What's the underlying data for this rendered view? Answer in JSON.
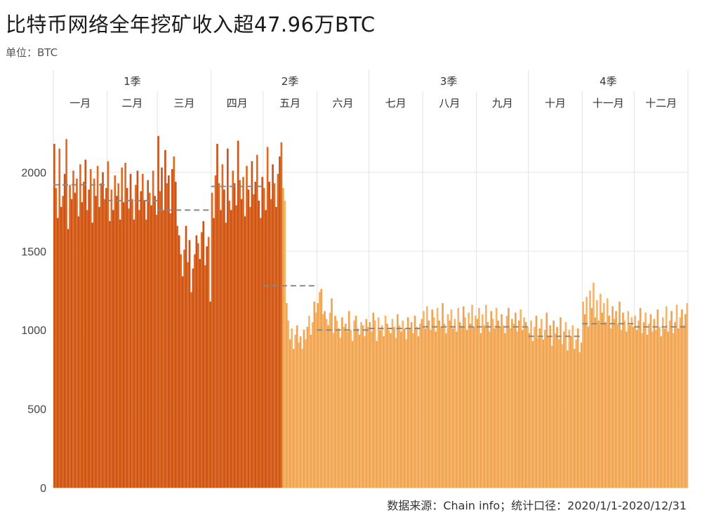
{
  "chart_data": {
    "type": "bar",
    "title": "比特币网络全年挖矿收入超47.96万BTC",
    "unit_label": "单位：BTC",
    "source": "数据来源：Chain info；统计口径：2020/1/1-2020/12/31",
    "x_range": [
      "2020-01-01",
      "2020-12-31"
    ],
    "quarters": [
      "1季",
      "2季",
      "3季",
      "4季"
    ],
    "months": [
      "一月",
      "二月",
      "三月",
      "四月",
      "五月",
      "六月",
      "七月",
      "八月",
      "九月",
      "十月",
      "十一月",
      "十二月"
    ],
    "days_per_month": [
      31,
      29,
      31,
      30,
      31,
      30,
      31,
      31,
      30,
      31,
      30,
      31
    ],
    "y_ticks": [
      0,
      500,
      1000,
      1500,
      2000
    ],
    "ylim": [
      0,
      2300
    ],
    "grid": true,
    "pre_halving_color": "#c9541c",
    "pre_halving_color_alt": "#e06a22",
    "post_halving_color": "#f0a451",
    "post_halving_color_alt": "#f5b56b",
    "avg_line_color": "#888888",
    "monthly_average": [
      1920,
      1820,
      1760,
      1910,
      1280,
      1000,
      1010,
      1020,
      1020,
      960,
      1040,
      1020
    ],
    "daily_revenue_by_month": [
      [
        2180,
        1900,
        1710,
        2150,
        1780,
        1850,
        1990,
        2210,
        1640,
        1920,
        1830,
        2010,
        1870,
        1960,
        1720,
        2050,
        1810,
        1940,
        2080,
        1760,
        1890,
        2020,
        1680,
        1960,
        1850,
        2040,
        1780,
        1930,
        2000,
        1830,
        1900
      ],
      [
        2070,
        1690,
        1890,
        1760,
        1980,
        1850,
        1930,
        1700,
        2030,
        1810,
        2060,
        1900,
        1770,
        1990,
        1830,
        1700,
        1920,
        2010,
        1760,
        1880,
        1990,
        1820,
        1700,
        1950,
        1870,
        1790,
        2010,
        1850,
        1730
      ],
      [
        2230,
        1880,
        2030,
        1760,
        2140,
        1930,
        1980,
        1740,
        2020,
        2100,
        1940,
        1660,
        1600,
        1480,
        1340,
        1510,
        1660,
        1430,
        1570,
        1240,
        1390,
        1480,
        1600,
        1550,
        1450,
        1620,
        1690,
        1410,
        1530,
        1590,
        1180
      ],
      [
        1870,
        1710,
        1980,
        2180,
        1930,
        1760,
        2050,
        1890,
        1680,
        2150,
        1820,
        1760,
        2010,
        1930,
        1790,
        2200,
        1950,
        1830,
        1970,
        1720,
        2040,
        1890,
        1780,
        2070,
        1860,
        1940,
        2110,
        1820,
        1710,
        1970
      ],
      [
        1900,
        1760,
        2160,
        1940,
        1830,
        2050,
        1930,
        1780,
        1990,
        2100,
        2190,
        1900,
        1820,
        1170,
        1060,
        940,
        1010,
        880,
        970,
        1030,
        920,
        960,
        880,
        1000,
        940,
        1020,
        1090,
        970,
        1050,
        1180,
        1110
      ],
      [
        1170,
        1240,
        1260,
        1100,
        1120,
        1070,
        1030,
        1110,
        1200,
        980,
        1090,
        1060,
        1010,
        950,
        1080,
        1020,
        1040,
        990,
        1120,
        1000,
        930,
        1060,
        1090,
        1010,
        970,
        1050,
        1030,
        960,
        1070,
        1020
      ],
      [
        1050,
        990,
        1110,
        1060,
        930,
        1080,
        1000,
        1030,
        960,
        1090,
        1040,
        1000,
        980,
        1070,
        1020,
        950,
        1100,
        1030,
        990,
        1060,
        1010,
        940,
        1080,
        1010,
        1050,
        980,
        1090,
        1020,
        960,
        1040,
        1070
      ],
      [
        1120,
        1010,
        1150,
        1060,
        1000,
        1130,
        1080,
        990,
        1140,
        1060,
        1020,
        1170,
        1040,
        980,
        1100,
        1060,
        1130,
        1010,
        1070,
        990,
        1140,
        1050,
        1020,
        1150,
        1080,
        1000,
        1110,
        1040,
        1160,
        1020,
        1090
      ],
      [
        1070,
        1140,
        980,
        1100,
        1030,
        1160,
        1050,
        990,
        1120,
        1070,
        1010,
        1140,
        1060,
        1020,
        1100,
        1030,
        980,
        1090,
        1140,
        1010,
        1070,
        1040,
        1110,
        990,
        1060,
        1130,
        1000,
        1080,
        1050,
        1020
      ],
      [
        980,
        1060,
        930,
        1020,
        1090,
        950,
        1010,
        1070,
        940,
        1000,
        1110,
        960,
        1030,
        900,
        1060,
        980,
        1020,
        940,
        1080,
        910,
        990,
        1050,
        870,
        1000,
        960,
        1030,
        880,
        940,
        1010,
        860,
        920
      ],
      [
        1180,
        1100,
        1210,
        1020,
        1250,
        1140,
        1300,
        1080,
        1190,
        1060,
        1230,
        1110,
        1170,
        1050,
        1200,
        1090,
        1010,
        1150,
        1070,
        1120,
        1040,
        1180,
        1000,
        1110,
        1060,
        990,
        1120,
        1030,
        1080,
        1020
      ],
      [
        1090,
        1000,
        1060,
        1140,
        980,
        1050,
        1110,
        970,
        1040,
        1100,
        990,
        1070,
        1000,
        1130,
        1020,
        960,
        1080,
        1010,
        1150,
        990,
        1060,
        1120,
        980,
        1050,
        1160,
        1010,
        1080,
        1130,
        1030,
        1100,
        1170
      ]
    ]
  }
}
